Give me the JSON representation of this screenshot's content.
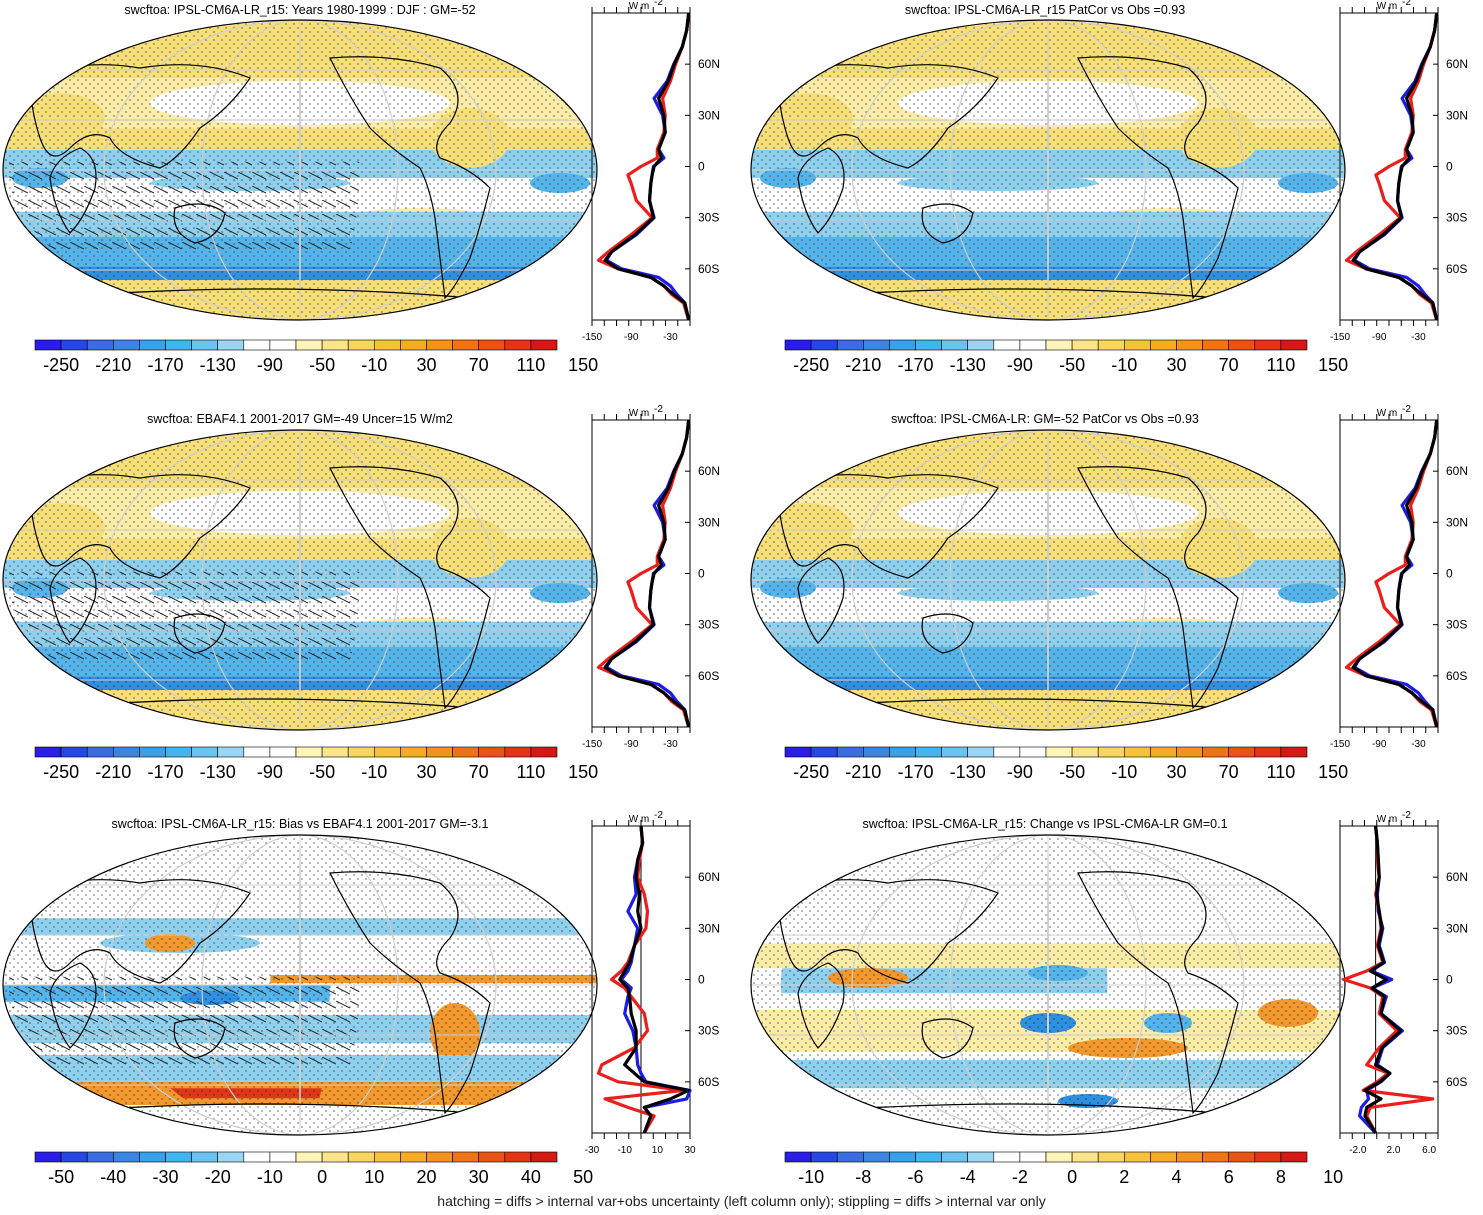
{
  "caption": "hatching = diffs > internal var+obs uncertainty (left column only); stippling = diffs > internal var only",
  "units": "W m",
  "units_sup": "-2",
  "colors": {
    "land_yellow": "#f7df7a",
    "pale_yellow": "#fbeda8",
    "white": "#ffffff",
    "light_blue": "#8fd0ee",
    "mid_blue": "#55b4ea",
    "deep_blue": "#2f8fe0",
    "orange": "#f1992e",
    "red": "#e0361a",
    "profile_blue": "#1c1ce6",
    "profile_red": "#ee1c1c",
    "profile_black": "#000000"
  },
  "colorbars": {
    "absolute": {
      "colors": [
        "#2a1ee6",
        "#2647e4",
        "#3a6ee0",
        "#3d86e0",
        "#3aa0e8",
        "#42b4ee",
        "#6bc4ef",
        "#9ad6f2",
        "#ffffff",
        "#ffffff",
        "#fef4b8",
        "#fbe58a",
        "#f8d560",
        "#f6c23c",
        "#f4ab26",
        "#f29320",
        "#ee7418",
        "#ea5316",
        "#e33416",
        "#d41a14"
      ],
      "labels": [
        "-250",
        "-210",
        "-170",
        "-130",
        "-90",
        "-50",
        "-10",
        "30",
        "70",
        "110",
        "150"
      ]
    },
    "bias": {
      "colors": [
        "#2a1ee6",
        "#2647e4",
        "#3a6ee0",
        "#3d86e0",
        "#3aa0e8",
        "#42b4ee",
        "#6bc4ef",
        "#9ad6f2",
        "#ffffff",
        "#ffffff",
        "#fef4b8",
        "#fbe58a",
        "#f8d560",
        "#f6c23c",
        "#f4ab26",
        "#f29320",
        "#ee7418",
        "#ea5316",
        "#e33416",
        "#d41a14"
      ],
      "labels": [
        "-50",
        "-40",
        "-30",
        "-20",
        "-10",
        "0",
        "10",
        "20",
        "30",
        "40",
        "50"
      ]
    },
    "change": {
      "colors": [
        "#2a1ee6",
        "#2647e4",
        "#3a6ee0",
        "#3d86e0",
        "#3aa0e8",
        "#42b4ee",
        "#6bc4ef",
        "#9ad6f2",
        "#ffffff",
        "#ffffff",
        "#fef4b8",
        "#fbe58a",
        "#f8d560",
        "#f6c23c",
        "#f4ab26",
        "#f29320",
        "#ee7418",
        "#ea5316",
        "#e33416",
        "#d41a14"
      ],
      "labels": [
        "-10",
        "-8",
        "-6",
        "-4",
        "-2",
        "0",
        "2",
        "4",
        "6",
        "8",
        "10"
      ]
    }
  },
  "lat_ticks": [
    "60N",
    "30N",
    "0",
    "30S",
    "60S"
  ],
  "chart_data": [
    {
      "type": "heatmap",
      "title": "swcftoa: IPSL-CM6A-LR_r15: Years 1980-1999 : DJF : GM=-52",
      "colorbar": "absolute",
      "map_style": "model",
      "hatching": true,
      "stippling": true,
      "profile": {
        "xlim": [
          -150,
          0
        ],
        "xticks": [
          "-150",
          "-90",
          "-30"
        ],
        "lat": [
          90,
          80,
          70,
          60,
          50,
          40,
          30,
          20,
          10,
          5,
          0,
          -5,
          -10,
          -20,
          -30,
          -40,
          -50,
          -55,
          -60,
          -65,
          -70,
          -75,
          -80,
          -90
        ],
        "series": [
          {
            "name": "blue",
            "values": [
              -2,
              -5,
              -12,
              -25,
              -35,
              -55,
              -42,
              -38,
              -48,
              -40,
              -56,
              -58,
              -60,
              -62,
              -55,
              -82,
              -120,
              -128,
              -105,
              -48,
              -30,
              -20,
              -8,
              -2
            ]
          },
          {
            "name": "red",
            "values": [
              -2,
              -5,
              -12,
              -22,
              -30,
              -42,
              -38,
              -40,
              -50,
              -50,
              -75,
              -95,
              -90,
              -82,
              -58,
              -90,
              -125,
              -140,
              -110,
              -60,
              -40,
              -28,
              -10,
              -2
            ]
          },
          {
            "name": "black",
            "values": [
              -2,
              -5,
              -12,
              -24,
              -33,
              -48,
              -40,
              -38,
              -48,
              -44,
              -55,
              -58,
              -60,
              -62,
              -56,
              -84,
              -120,
              -130,
              -110,
              -60,
              -40,
              -25,
              -8,
              -2
            ]
          }
        ]
      }
    },
    {
      "type": "heatmap",
      "title": "swcftoa: IPSL-CM6A-LR_r15 PatCor vs Obs =0.93",
      "colorbar": "absolute",
      "map_style": "model",
      "hatching": false,
      "stippling": true,
      "profile": {
        "xlim": [
          -150,
          0
        ],
        "xticks": [
          "-150",
          "-90",
          "-30"
        ],
        "lat": [
          90,
          80,
          70,
          60,
          50,
          40,
          30,
          20,
          10,
          5,
          0,
          -5,
          -10,
          -20,
          -30,
          -40,
          -50,
          -55,
          -60,
          -65,
          -70,
          -75,
          -80,
          -90
        ],
        "series": [
          {
            "name": "blue",
            "values": [
              -2,
              -5,
              -12,
              -25,
              -35,
              -55,
              -42,
              -38,
              -48,
              -40,
              -56,
              -58,
              -60,
              -62,
              -55,
              -82,
              -120,
              -128,
              -105,
              -48,
              -30,
              -20,
              -8,
              -2
            ]
          },
          {
            "name": "red",
            "values": [
              -2,
              -5,
              -12,
              -22,
              -30,
              -42,
              -38,
              -40,
              -50,
              -50,
              -75,
              -95,
              -90,
              -82,
              -58,
              -90,
              -125,
              -140,
              -110,
              -60,
              -40,
              -28,
              -10,
              -2
            ]
          },
          {
            "name": "black",
            "values": [
              -2,
              -5,
              -12,
              -24,
              -33,
              -48,
              -40,
              -38,
              -48,
              -44,
              -55,
              -58,
              -60,
              -62,
              -56,
              -84,
              -120,
              -130,
              -110,
              -60,
              -40,
              -25,
              -8,
              -2
            ]
          }
        ]
      }
    },
    {
      "type": "heatmap",
      "title": "swcftoa: EBAF4.1 2001-2017 GM=-49 Uncer=15 W/m2",
      "colorbar": "absolute",
      "map_style": "obs",
      "hatching": true,
      "stippling": true,
      "profile": {
        "xlim": [
          -150,
          0
        ],
        "xticks": [
          "-150",
          "-90",
          "-30"
        ],
        "lat": [
          90,
          80,
          70,
          60,
          50,
          40,
          30,
          20,
          10,
          5,
          0,
          -5,
          -10,
          -20,
          -30,
          -40,
          -50,
          -55,
          -60,
          -65,
          -70,
          -75,
          -80,
          -90
        ],
        "series": [
          {
            "name": "blue",
            "values": [
              -2,
              -5,
              -12,
              -25,
              -35,
              -55,
              -42,
              -38,
              -48,
              -40,
              -56,
              -58,
              -60,
              -62,
              -55,
              -82,
              -120,
              -128,
              -105,
              -48,
              -30,
              -20,
              -8,
              -2
            ]
          },
          {
            "name": "red",
            "values": [
              -2,
              -5,
              -12,
              -22,
              -30,
              -42,
              -38,
              -40,
              -50,
              -50,
              -75,
              -95,
              -90,
              -82,
              -58,
              -90,
              -125,
              -140,
              -110,
              -60,
              -40,
              -28,
              -10,
              -2
            ]
          },
          {
            "name": "black",
            "values": [
              -2,
              -5,
              -12,
              -24,
              -33,
              -48,
              -40,
              -38,
              -48,
              -44,
              -55,
              -58,
              -60,
              -62,
              -56,
              -84,
              -120,
              -130,
              -110,
              -60,
              -40,
              -25,
              -8,
              -2
            ]
          }
        ]
      }
    },
    {
      "type": "heatmap",
      "title": "swcftoa: IPSL-CM6A-LR: GM=-52 PatCor vs Obs =0.93",
      "colorbar": "absolute",
      "map_style": "model",
      "hatching": false,
      "stippling": true,
      "profile": {
        "xlim": [
          -150,
          0
        ],
        "xticks": [
          "-150",
          "-90",
          "-30"
        ],
        "lat": [
          90,
          80,
          70,
          60,
          50,
          40,
          30,
          20,
          10,
          5,
          0,
          -5,
          -10,
          -20,
          -30,
          -40,
          -50,
          -55,
          -60,
          -65,
          -70,
          -75,
          -80,
          -90
        ],
        "series": [
          {
            "name": "blue",
            "values": [
              -2,
              -5,
              -12,
              -25,
              -35,
              -55,
              -42,
              -38,
              -48,
              -40,
              -56,
              -58,
              -60,
              -62,
              -55,
              -82,
              -120,
              -128,
              -105,
              -48,
              -30,
              -20,
              -8,
              -2
            ]
          },
          {
            "name": "red",
            "values": [
              -2,
              -5,
              -12,
              -22,
              -30,
              -42,
              -38,
              -40,
              -50,
              -50,
              -75,
              -95,
              -90,
              -82,
              -58,
              -90,
              -125,
              -140,
              -110,
              -60,
              -40,
              -28,
              -10,
              -2
            ]
          },
          {
            "name": "black",
            "values": [
              -2,
              -5,
              -12,
              -24,
              -33,
              -48,
              -40,
              -38,
              -48,
              -44,
              -55,
              -58,
              -60,
              -62,
              -56,
              -84,
              -120,
              -130,
              -110,
              -60,
              -40,
              -25,
              -8,
              -2
            ]
          }
        ]
      }
    },
    {
      "type": "heatmap",
      "title": "swcftoa: IPSL-CM6A-LR_r15: Bias vs EBAF4.1 2001-2017 GM=-3.1",
      "colorbar": "bias",
      "map_style": "bias",
      "hatching": true,
      "stippling": true,
      "profile": {
        "xlim": [
          -30,
          30
        ],
        "xticks": [
          "-30",
          "-10",
          "10",
          "30"
        ],
        "lat": [
          90,
          80,
          70,
          60,
          50,
          40,
          30,
          20,
          10,
          5,
          0,
          -5,
          -10,
          -20,
          -30,
          -40,
          -50,
          -55,
          -60,
          -65,
          -70,
          -75,
          -80,
          -90
        ],
        "series": [
          {
            "name": "blue",
            "values": [
              0,
              1,
              -2,
              -4,
              -3,
              -8,
              -2,
              -4,
              -6,
              -8,
              -12,
              -6,
              -8,
              -10,
              -5,
              -3,
              -2,
              0,
              3,
              30,
              28,
              2,
              6,
              2
            ]
          },
          {
            "name": "red",
            "values": [
              0,
              1,
              -1,
              -2,
              2,
              4,
              3,
              -4,
              -8,
              -12,
              -18,
              -10,
              -6,
              2,
              4,
              -4,
              -24,
              -26,
              -14,
              26,
              -22,
              -8,
              8,
              2
            ]
          },
          {
            "name": "black",
            "values": [
              0,
              1,
              -2,
              -3,
              -1,
              -2,
              0,
              -4,
              -7,
              -10,
              -13,
              -8,
              -7,
              -6,
              -3,
              -3,
              -10,
              -4,
              2,
              29,
              18,
              2,
              6,
              2
            ]
          }
        ]
      }
    },
    {
      "type": "heatmap",
      "title": "swcftoa: IPSL-CM6A-LR_r15: Change vs IPSL-CM6A-LR GM=0.1",
      "colorbar": "change",
      "map_style": "change",
      "hatching": false,
      "stippling": true,
      "profile": {
        "xlim": [
          -4,
          7
        ],
        "xticks": [
          "-2.0",
          "2.0",
          "6.0"
        ],
        "lat": [
          90,
          80,
          70,
          60,
          50,
          40,
          30,
          20,
          10,
          5,
          0,
          -5,
          -10,
          -20,
          -30,
          -40,
          -50,
          -55,
          -60,
          -65,
          -70,
          -75,
          -80,
          -90
        ],
        "series": [
          {
            "name": "blue",
            "values": [
              0,
              0.2,
              0.3,
              0.4,
              0.2,
              0.3,
              0.8,
              0.4,
              1.0,
              -0.5,
              1.8,
              -0.4,
              1.2,
              0.6,
              3.0,
              0.8,
              0.2,
              1.6,
              0.6,
              -1.0,
              -0.8,
              -1.6,
              -1.8,
              0
            ]
          },
          {
            "name": "red",
            "values": [
              0,
              0.2,
              0.2,
              0.4,
              0.0,
              0.4,
              0.6,
              0.2,
              0.8,
              -1.0,
              -3.6,
              -0.6,
              0.8,
              0.4,
              2.4,
              0.4,
              -1.0,
              1.4,
              0.2,
              -1.4,
              6.4,
              -0.6,
              -1.0,
              0
            ]
          },
          {
            "name": "black",
            "values": [
              0,
              0.2,
              0.3,
              0.4,
              0.1,
              0.4,
              0.7,
              0.3,
              0.9,
              -0.6,
              1.2,
              -0.4,
              1.0,
              0.6,
              2.8,
              0.7,
              0.0,
              1.6,
              0.5,
              -1.2,
              0.6,
              -1.0,
              -1.2,
              0
            ]
          }
        ]
      }
    }
  ]
}
